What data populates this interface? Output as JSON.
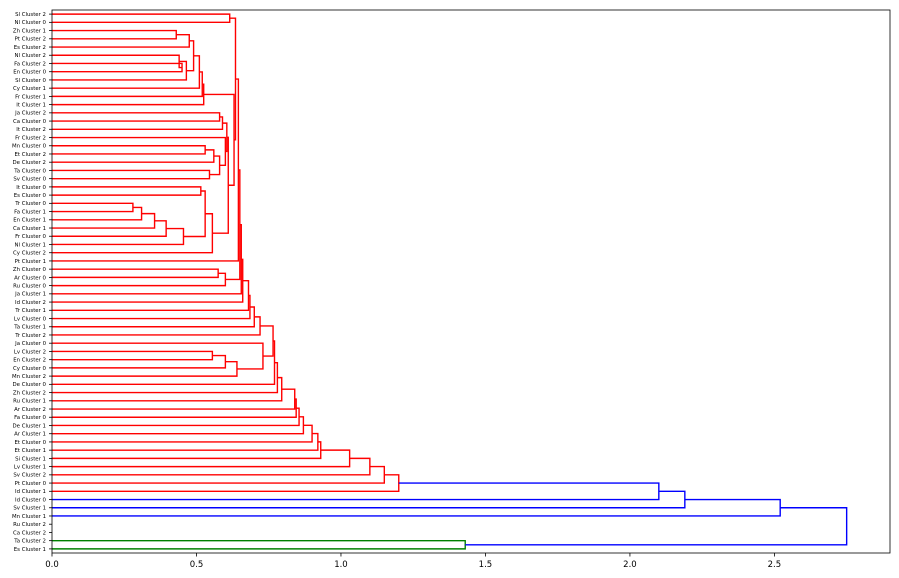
{
  "chart_data": {
    "type": "dendrogram",
    "orientation": "horizontal",
    "xlim": [
      0,
      2.9
    ],
    "xticks": [
      "0.0",
      "0.5",
      "1.0",
      "1.5",
      "2.0",
      "2.5"
    ],
    "xtick_values": [
      0,
      0.5,
      1.0,
      1.5,
      2.0,
      2.5
    ],
    "colors": {
      "above_threshold": "#0000ff",
      "cluster_red": "#ff0000",
      "cluster_green": "#008000"
    },
    "leaves": [
      "Sl Cluster 2",
      "Nl Cluster 0",
      "Zh Cluster 1",
      "Pt Cluster 2",
      "Es Cluster 2",
      "Nl Cluster 2",
      "Fa Cluster 2",
      "En Cluster 0",
      "Sl Cluster 0",
      "Cy Cluster 1",
      "Fr Cluster 1",
      "It Cluster 1",
      "Ja Cluster 2",
      "Ca Cluster 0",
      "It Cluster 2",
      "Fr Cluster 2",
      "Mn Cluster 0",
      "Et Cluster 2",
      "De Cluster 2",
      "Ta Cluster 0",
      "Sv Cluster 0",
      "It Cluster 0",
      "Es Cluster 0",
      "Tr Cluster 0",
      "Fa Cluster 1",
      "En Cluster 1",
      "Ca Cluster 1",
      "Fr Cluster 0",
      "Nl Cluster 1",
      "Cy Cluster 2",
      "Pt Cluster 1",
      "Zh Cluster 0",
      "Ar Cluster 0",
      "Ru Cluster 0",
      "Ja Cluster 1",
      "Id Cluster 2",
      "Tr Cluster 1",
      "Lv Cluster 0",
      "Ta Cluster 1",
      "Tr Cluster 2",
      "Ja Cluster 0",
      "Lv Cluster 2",
      "En Cluster 2",
      "Cy Cluster 0",
      "Mn Cluster 2",
      "De Cluster 0",
      "Zh Cluster 2",
      "Ru Cluster 1",
      "Ar Cluster 2",
      "Fa Cluster 0",
      "De Cluster 1",
      "Ar Cluster 1",
      "Et Cluster 0",
      "Et Cluster 1",
      "Si Cluster 1",
      "Lv Cluster 1",
      "Sv Cluster 2",
      "Pt Cluster 0",
      "Id Cluster 1",
      "Id Cluster 0",
      "Sv Cluster 1",
      "Mn Cluster 1",
      "Ru Cluster 2",
      "Ca Cluster 2",
      "Ta Cluster 2",
      "Es Cluster 1"
    ],
    "links": [
      {
        "a": "Sl Cluster 2",
        "b": "Nl Cluster 0",
        "h": 0.615,
        "color": "r"
      },
      {
        "a": "Zh Cluster 1",
        "b": "Pt Cluster 2",
        "h": 0.43,
        "color": "r"
      },
      {
        "a": "L:Zh Cluster 1",
        "b": "Es Cluster 2",
        "h": 0.475,
        "color": "r"
      },
      {
        "a": "Fa Cluster 2",
        "b": "En Cluster 0",
        "h": 0.45,
        "color": "r"
      },
      {
        "a": "Nl Cluster 2",
        "b": "L:Fa Cluster 2",
        "h": 0.44,
        "color": "r"
      },
      {
        "a": "L:Nl Cluster 2",
        "b": "Sl Cluster 0",
        "h": 0.465,
        "color": "r"
      },
      {
        "a": "L:Zh Cluster 1",
        "b": "L:Nl Cluster 2",
        "h": 0.49,
        "color": "r"
      },
      {
        "a": "L:Zh Cluster 1",
        "b": "Cy Cluster 1",
        "h": 0.51,
        "color": "r"
      },
      {
        "a": "L:Zh Cluster 1",
        "b": "Fr Cluster 1",
        "h": 0.52,
        "color": "r"
      },
      {
        "a": "L:Zh Cluster 1",
        "b": "It Cluster 1",
        "h": 0.525,
        "color": "r"
      },
      {
        "a": "Ja Cluster 2",
        "b": "Ca Cluster 0",
        "h": 0.58,
        "color": "r"
      },
      {
        "a": "L:Ja Cluster 2",
        "b": "It Cluster 2",
        "h": 0.59,
        "color": "r"
      },
      {
        "a": "Mn Cluster 0",
        "b": "Et Cluster 2",
        "h": 0.53,
        "color": "r"
      },
      {
        "a": "L:Mn Cluster 0",
        "b": "De Cluster 2",
        "h": 0.56,
        "color": "r"
      },
      {
        "a": "Ta Cluster 0",
        "b": "Sv Cluster 0",
        "h": 0.545,
        "color": "r"
      },
      {
        "a": "L:Mn Cluster 0",
        "b": "L:Ta Cluster 0",
        "h": 0.58,
        "color": "r"
      },
      {
        "a": "Fr Cluster 2",
        "b": "L:Mn Cluster 0",
        "h": 0.6,
        "color": "r"
      },
      {
        "a": "L:Ja Cluster 2",
        "b": "L:Fr Cluster 2",
        "h": 0.605,
        "color": "r"
      },
      {
        "a": "It Cluster 0",
        "b": "Es Cluster 0",
        "h": 0.515,
        "color": "r"
      },
      {
        "a": "Tr Cluster 0",
        "b": "Fa Cluster 1",
        "h": 0.28,
        "color": "r"
      },
      {
        "a": "L:Tr Cluster 0",
        "b": "En Cluster 1",
        "h": 0.31,
        "color": "r"
      },
      {
        "a": "L:Tr Cluster 0",
        "b": "Ca Cluster 1",
        "h": 0.355,
        "color": "r"
      },
      {
        "a": "L:Tr Cluster 0",
        "b": "Fr Cluster 0",
        "h": 0.395,
        "color": "r"
      },
      {
        "a": "L:Tr Cluster 0",
        "b": "Nl Cluster 1",
        "h": 0.455,
        "color": "r"
      },
      {
        "a": "L:It Cluster 0",
        "b": "L:Tr Cluster 0",
        "h": 0.53,
        "color": "r"
      },
      {
        "a": "L:It Cluster 0",
        "b": "Cy Cluster 2",
        "h": 0.555,
        "color": "r"
      },
      {
        "a": "L:Ja Cluster 2",
        "b": "L:It Cluster 0",
        "h": 0.61,
        "color": "r"
      },
      {
        "a": "L:Zh Cluster 1",
        "b": "L:Ja Cluster 2",
        "h": 0.63,
        "color": "r"
      },
      {
        "a": "L:Sl Cluster 2",
        "b": "L:Zh Cluster 1",
        "h": 0.635,
        "color": "r"
      },
      {
        "a": "L:Sl Cluster 2",
        "b": "Pt Cluster 1",
        "h": 0.645,
        "color": "r"
      },
      {
        "a": "Zh Cluster 0",
        "b": "Ar Cluster 0",
        "h": 0.575,
        "color": "r"
      },
      {
        "a": "L:Zh Cluster 0",
        "b": "Ru Cluster 0",
        "h": 0.6,
        "color": "r"
      },
      {
        "a": "L:Sl Cluster 2",
        "b": "L:Zh Cluster 0",
        "h": 0.65,
        "color": "r"
      },
      {
        "a": "L:Sl Cluster 2",
        "b": "Ja Cluster 1",
        "h": 0.655,
        "color": "r"
      },
      {
        "a": "L:Sl Cluster 2",
        "b": "Id Cluster 2",
        "h": 0.66,
        "color": "r"
      },
      {
        "a": "L:Sl Cluster 2",
        "b": "Tr Cluster 1",
        "h": 0.68,
        "color": "r"
      },
      {
        "a": "L:Sl Cluster 2",
        "b": "Lv Cluster 0",
        "h": 0.685,
        "color": "r"
      },
      {
        "a": "L:Sl Cluster 2",
        "b": "Ta Cluster 1",
        "h": 0.7,
        "color": "r"
      },
      {
        "a": "L:Sl Cluster 2",
        "b": "Tr Cluster 2",
        "h": 0.72,
        "color": "r"
      },
      {
        "a": "Lv Cluster 2",
        "b": "En Cluster 2",
        "h": 0.555,
        "color": "r"
      },
      {
        "a": "L:Lv Cluster 2",
        "b": "Cy Cluster 0",
        "h": 0.6,
        "color": "r"
      },
      {
        "a": "L:Lv Cluster 2",
        "b": "Mn Cluster 2",
        "h": 0.64,
        "color": "r"
      },
      {
        "a": "Ja Cluster 0",
        "b": "L:Lv Cluster 2",
        "h": 0.73,
        "color": "r"
      },
      {
        "a": "L:Sl Cluster 2",
        "b": "L:Ja Cluster 0",
        "h": 0.765,
        "color": "r"
      },
      {
        "a": "L:Sl Cluster 2",
        "b": "De Cluster 0",
        "h": 0.77,
        "color": "r"
      },
      {
        "a": "L:Sl Cluster 2",
        "b": "Zh Cluster 2",
        "h": 0.78,
        "color": "r"
      },
      {
        "a": "L:Sl Cluster 2",
        "b": "Ru Cluster 1",
        "h": 0.795,
        "color": "r"
      },
      {
        "a": "L:Sl Cluster 2",
        "b": "Ar Cluster 2",
        "h": 0.84,
        "color": "r"
      },
      {
        "a": "L:Sl Cluster 2",
        "b": "Fa Cluster 0",
        "h": 0.845,
        "color": "r"
      },
      {
        "a": "L:Sl Cluster 2",
        "b": "De Cluster 1",
        "h": 0.855,
        "color": "r"
      },
      {
        "a": "L:Sl Cluster 2",
        "b": "Ar Cluster 1",
        "h": 0.87,
        "color": "r"
      },
      {
        "a": "L:Sl Cluster 2",
        "b": "Et Cluster 0",
        "h": 0.9,
        "color": "r"
      },
      {
        "a": "L:Sl Cluster 2",
        "b": "Et Cluster 1",
        "h": 0.92,
        "color": "r"
      },
      {
        "a": "L:Sl Cluster 2",
        "b": "Si Cluster 1",
        "h": 0.93,
        "color": "r"
      },
      {
        "a": "L:Sl Cluster 2",
        "b": "Lv Cluster 1",
        "h": 1.03,
        "color": "r"
      },
      {
        "a": "L:Sl Cluster 2",
        "b": "Sv Cluster 2",
        "h": 1.1,
        "color": "r"
      },
      {
        "a": "L:Sl Cluster 2",
        "b": "Pt Cluster 0",
        "h": 1.15,
        "color": "r"
      },
      {
        "a": "L:Sl Cluster 2",
        "b": "Id Cluster 1",
        "h": 1.2,
        "color": "r"
      },
      {
        "a": "L:Sl Cluster 2",
        "b": "Id Cluster 0",
        "h": 2.1,
        "color": "b"
      },
      {
        "a": "L:Sl Cluster 2",
        "b": "Sv Cluster 1",
        "h": 2.19,
        "color": "b"
      },
      {
        "a": "L:Sl Cluster 2",
        "b": "Mn Cluster 1",
        "h": 2.52,
        "color": "b"
      },
      {
        "a": "Ta Cluster 2",
        "b": "Es Cluster 1",
        "h": 1.43,
        "color": "g"
      },
      {
        "a": "L:Sl Cluster 2",
        "b": "L:Ta Cluster 2",
        "h": 2.75,
        "color": "b"
      }
    ]
  }
}
